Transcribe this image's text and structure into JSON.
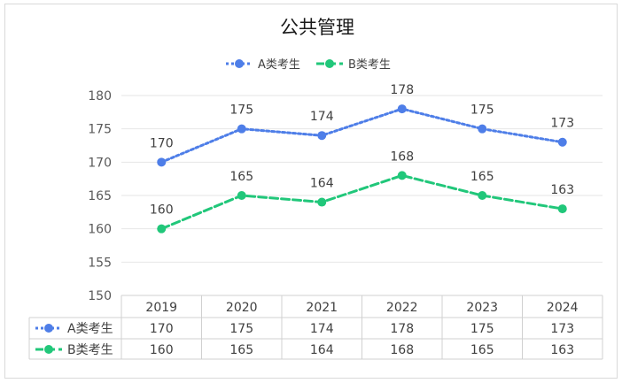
{
  "chart_data": {
    "type": "line",
    "title": "公共管理",
    "categories": [
      "2019",
      "2020",
      "2021",
      "2022",
      "2023",
      "2024"
    ],
    "series": [
      {
        "name": "A类考生",
        "values": [
          170,
          175,
          174,
          178,
          175,
          173
        ],
        "color": "#4e7ee8",
        "dash": "dotted"
      },
      {
        "name": "B类考生",
        "values": [
          160,
          165,
          164,
          168,
          165,
          163
        ],
        "color": "#21c77a",
        "dash": "dashed"
      }
    ],
    "ylim": [
      150,
      180
    ],
    "yticks": [
      "150",
      "155",
      "160",
      "165",
      "170",
      "175",
      "180"
    ],
    "xlabel": "",
    "ylabel": "",
    "legend": "top-center",
    "grid": true,
    "data_table": true
  }
}
